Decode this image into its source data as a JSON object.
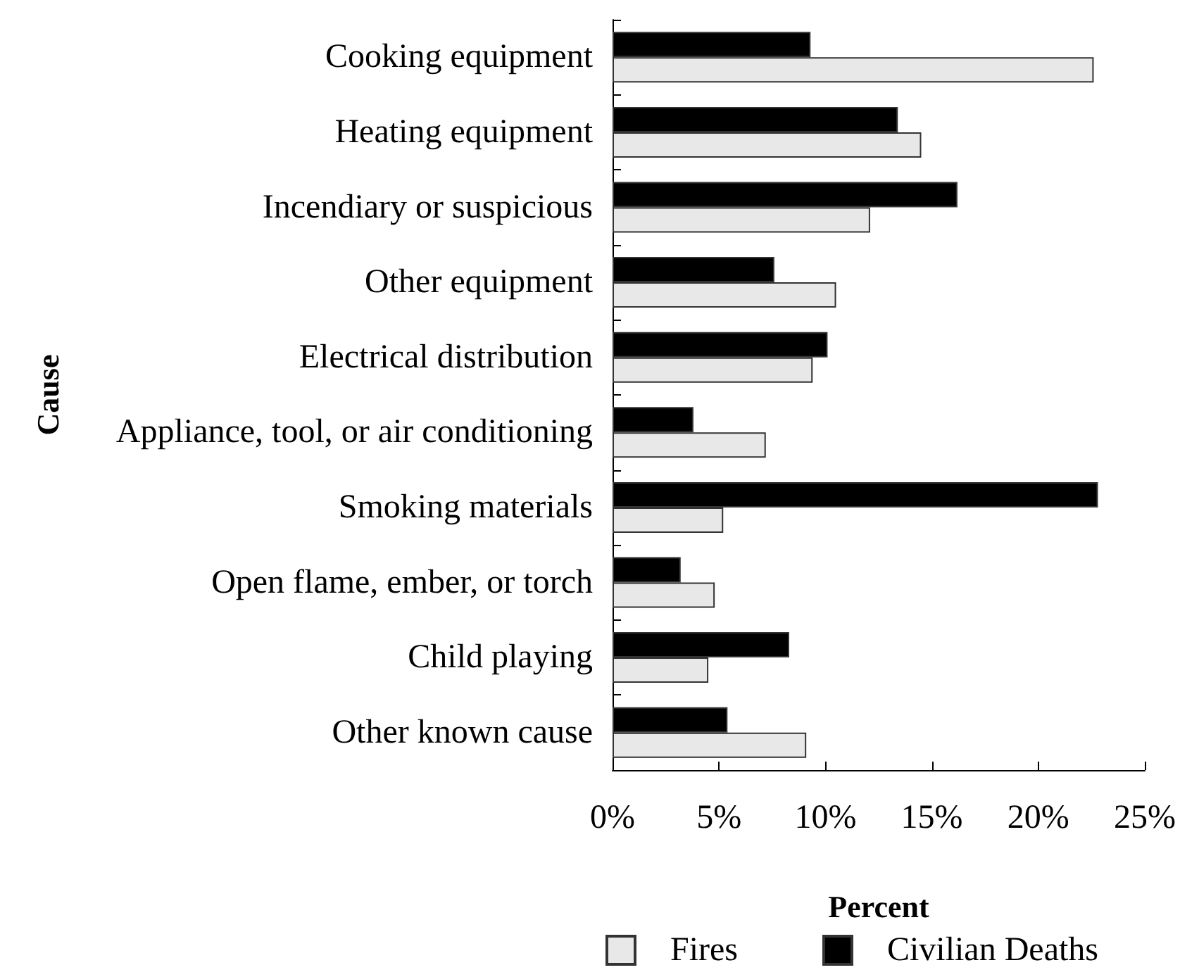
{
  "chart_data": {
    "type": "bar",
    "orientation": "horizontal",
    "xlabel": "Percent",
    "ylabel": "Cause",
    "categories": [
      "Cooking equipment",
      "Heating equipment",
      "Incendiary or suspicious",
      "Other equipment",
      "Electrical distribution",
      "Appliance, tool, or air conditioning",
      "Smoking materials",
      "Open flame, ember, or torch",
      "Child playing",
      "Other known cause"
    ],
    "series": [
      {
        "name": "Fires",
        "color": "#e8e8e8",
        "values": [
          22.6,
          14.5,
          12.1,
          10.5,
          9.4,
          7.2,
          5.2,
          4.8,
          4.5,
          9.1
        ]
      },
      {
        "name": "Civilian Deaths",
        "color": "#000000",
        "values": [
          9.3,
          13.4,
          16.2,
          7.6,
          10.1,
          3.8,
          22.8,
          3.2,
          8.3,
          5.4
        ]
      }
    ],
    "xlim": [
      0,
      25
    ],
    "xticks": [
      {
        "value": 0,
        "label": "0%"
      },
      {
        "value": 5,
        "label": "5%"
      },
      {
        "value": 10,
        "label": "10%"
      },
      {
        "value": 15,
        "label": "15%"
      },
      {
        "value": 20,
        "label": "20%"
      },
      {
        "value": 25,
        "label": "25%"
      }
    ],
    "grid": false,
    "legend": "bottom"
  }
}
